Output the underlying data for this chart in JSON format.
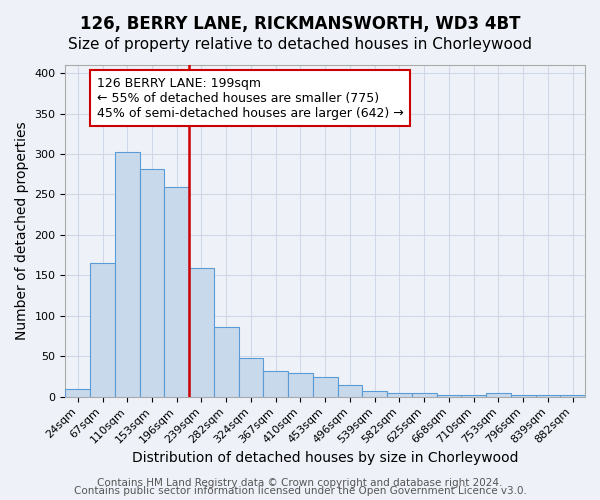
{
  "title": "126, BERRY LANE, RICKMANSWORTH, WD3 4BT",
  "subtitle": "Size of property relative to detached houses in Chorleywood",
  "xlabel": "Distribution of detached houses by size in Chorleywood",
  "ylabel": "Number of detached properties",
  "footer_line1": "Contains HM Land Registry data © Crown copyright and database right 2024.",
  "footer_line2": "Contains public sector information licensed under the Open Government Licence v3.0.",
  "bin_labels": [
    "24sqm",
    "67sqm",
    "110sqm",
    "153sqm",
    "196sqm",
    "239sqm",
    "282sqm",
    "324sqm",
    "367sqm",
    "410sqm",
    "453sqm",
    "496sqm",
    "539sqm",
    "582sqm",
    "625sqm",
    "668sqm",
    "710sqm",
    "753sqm",
    "796sqm",
    "839sqm",
    "882sqm"
  ],
  "bar_heights": [
    10,
    165,
    303,
    281,
    259,
    159,
    86,
    48,
    32,
    29,
    25,
    15,
    7,
    5,
    5,
    2,
    2,
    5,
    2,
    2,
    2
  ],
  "bar_color": "#c9d9ec",
  "bar_edge_color": "#5b9bd5",
  "vline_label_index": 4,
  "vline_color": "#cc0000",
  "ylim": [
    0,
    410
  ],
  "yticks": [
    0,
    50,
    100,
    150,
    200,
    250,
    300,
    350,
    400
  ],
  "annotation_line1": "126 BERRY LANE: 199sqm",
  "annotation_line2": "← 55% of detached houses are smaller (775)",
  "annotation_line3": "45% of semi-detached houses are larger (642) →",
  "annotation_box_color": "#ffffff",
  "annotation_box_edge_color": "#cc0000",
  "title_fontsize": 12,
  "subtitle_fontsize": 11,
  "axis_label_fontsize": 10,
  "tick_fontsize": 8,
  "annotation_fontsize": 9,
  "footer_fontsize": 7.5,
  "grid_color": "#d0d8e8",
  "background_color": "#eef2f8"
}
